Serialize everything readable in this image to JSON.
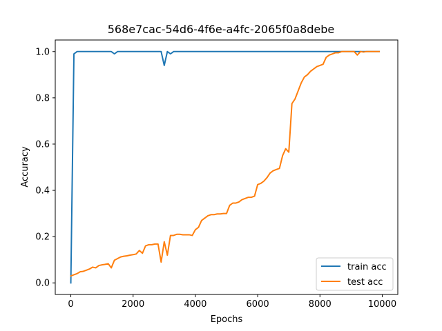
{
  "chart_data": {
    "type": "line",
    "title": "568e7cac-54d6-4f6e-a4fc-2065f0a8debe",
    "xlabel": "Epochs",
    "ylabel": "Accuracy",
    "xlim": [
      -500,
      10500
    ],
    "ylim": [
      -0.05,
      1.05
    ],
    "xticks": [
      0,
      2000,
      4000,
      6000,
      8000,
      10000
    ],
    "yticks": [
      0.0,
      0.2,
      0.4,
      0.6,
      0.8,
      1.0
    ],
    "xtick_labels": [
      "0",
      "2000",
      "4000",
      "6000",
      "8000",
      "10000"
    ],
    "ytick_labels": [
      "0.0",
      "0.2",
      "0.4",
      "0.6",
      "0.8",
      "1.0"
    ],
    "grid": false,
    "legend_position": "lower-right",
    "series": [
      {
        "name": "train acc",
        "color": "#1f77b4",
        "points": [
          [
            0,
            0.0
          ],
          [
            100,
            0.99
          ],
          [
            200,
            1.0
          ],
          [
            1300,
            1.0
          ],
          [
            1400,
            0.99
          ],
          [
            1500,
            1.0
          ],
          [
            2900,
            1.0
          ],
          [
            3000,
            0.94
          ],
          [
            3100,
            1.0
          ],
          [
            3200,
            0.99
          ],
          [
            3300,
            1.0
          ],
          [
            9900,
            1.0
          ]
        ]
      },
      {
        "name": "test acc",
        "color": "#ff7f0e",
        "points": [
          [
            0,
            0.03
          ],
          [
            100,
            0.035
          ],
          [
            200,
            0.04
          ],
          [
            300,
            0.048
          ],
          [
            400,
            0.05
          ],
          [
            500,
            0.055
          ],
          [
            600,
            0.06
          ],
          [
            700,
            0.068
          ],
          [
            800,
            0.065
          ],
          [
            900,
            0.075
          ],
          [
            1000,
            0.078
          ],
          [
            1100,
            0.08
          ],
          [
            1200,
            0.083
          ],
          [
            1300,
            0.065
          ],
          [
            1400,
            0.098
          ],
          [
            1500,
            0.105
          ],
          [
            1600,
            0.112
          ],
          [
            1700,
            0.115
          ],
          [
            1800,
            0.117
          ],
          [
            1900,
            0.12
          ],
          [
            2000,
            0.122
          ],
          [
            2100,
            0.125
          ],
          [
            2200,
            0.14
          ],
          [
            2300,
            0.128
          ],
          [
            2400,
            0.16
          ],
          [
            2500,
            0.165
          ],
          [
            2600,
            0.165
          ],
          [
            2700,
            0.168
          ],
          [
            2800,
            0.168
          ],
          [
            2900,
            0.09
          ],
          [
            3000,
            0.178
          ],
          [
            3100,
            0.12
          ],
          [
            3200,
            0.205
          ],
          [
            3300,
            0.205
          ],
          [
            3400,
            0.21
          ],
          [
            3500,
            0.21
          ],
          [
            3600,
            0.208
          ],
          [
            3700,
            0.208
          ],
          [
            3800,
            0.208
          ],
          [
            3900,
            0.205
          ],
          [
            4000,
            0.23
          ],
          [
            4100,
            0.24
          ],
          [
            4200,
            0.27
          ],
          [
            4300,
            0.28
          ],
          [
            4400,
            0.29
          ],
          [
            4500,
            0.295
          ],
          [
            4600,
            0.295
          ],
          [
            4700,
            0.298
          ],
          [
            4800,
            0.298
          ],
          [
            4900,
            0.3
          ],
          [
            5000,
            0.3
          ],
          [
            5100,
            0.335
          ],
          [
            5200,
            0.345
          ],
          [
            5300,
            0.345
          ],
          [
            5400,
            0.35
          ],
          [
            5500,
            0.36
          ],
          [
            5600,
            0.365
          ],
          [
            5700,
            0.37
          ],
          [
            5800,
            0.37
          ],
          [
            5900,
            0.375
          ],
          [
            6000,
            0.425
          ],
          [
            6100,
            0.43
          ],
          [
            6200,
            0.44
          ],
          [
            6300,
            0.455
          ],
          [
            6400,
            0.475
          ],
          [
            6500,
            0.485
          ],
          [
            6600,
            0.49
          ],
          [
            6700,
            0.495
          ],
          [
            6800,
            0.55
          ],
          [
            6900,
            0.58
          ],
          [
            7000,
            0.565
          ],
          [
            7100,
            0.775
          ],
          [
            7200,
            0.795
          ],
          [
            7300,
            0.83
          ],
          [
            7400,
            0.865
          ],
          [
            7500,
            0.89
          ],
          [
            7600,
            0.9
          ],
          [
            7700,
            0.915
          ],
          [
            7800,
            0.925
          ],
          [
            7900,
            0.935
          ],
          [
            8000,
            0.94
          ],
          [
            8100,
            0.945
          ],
          [
            8200,
            0.975
          ],
          [
            8300,
            0.985
          ],
          [
            8400,
            0.99
          ],
          [
            8500,
            0.995
          ],
          [
            8600,
            0.995
          ],
          [
            8700,
            1.0
          ],
          [
            8800,
            1.0
          ],
          [
            8900,
            1.0
          ],
          [
            9000,
            1.0
          ],
          [
            9100,
            1.0
          ],
          [
            9200,
            0.985
          ],
          [
            9300,
            1.0
          ],
          [
            9400,
            0.998
          ],
          [
            9500,
            1.0
          ],
          [
            9900,
            1.0
          ]
        ]
      }
    ]
  }
}
